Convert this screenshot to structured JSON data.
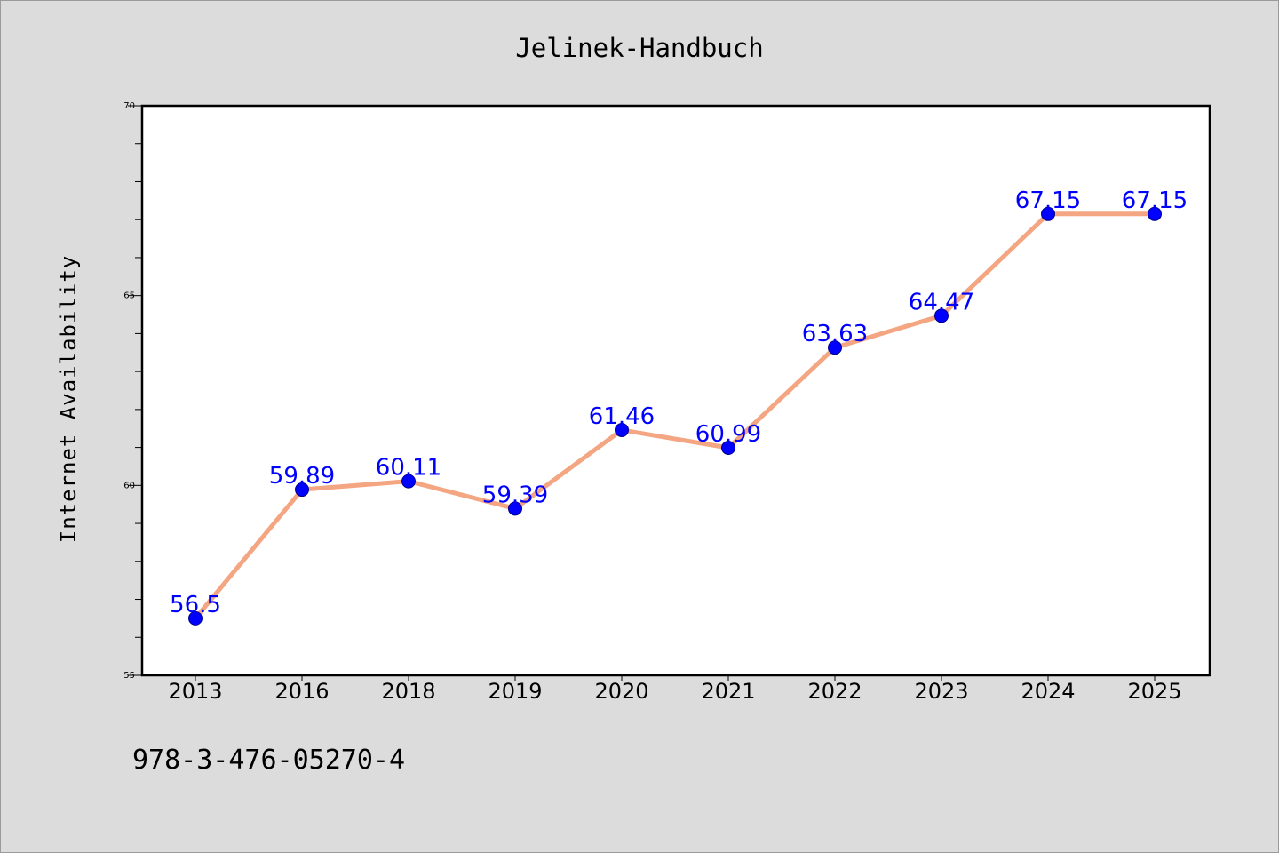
{
  "chart_data": {
    "type": "line",
    "title": "Jelinek-Handbuch",
    "xlabel": "",
    "ylabel": "Internet Availability",
    "categories": [
      "2013",
      "2016",
      "2018",
      "2019",
      "2020",
      "2021",
      "2022",
      "2023",
      "2024",
      "2025"
    ],
    "series": [
      {
        "values": [
          56.5,
          59.89,
          60.11,
          59.39,
          61.46,
          60.99,
          63.63,
          64.47,
          67.15,
          67.15
        ],
        "labels": [
          "56.5",
          "59.89",
          "60.11",
          "59.39",
          "61.46",
          "60.99",
          "63.63",
          "64.47",
          "67.15",
          "67.15"
        ],
        "line_color": "#f4a582",
        "marker_color": "#0000ff"
      }
    ],
    "ylim": [
      55,
      70
    ],
    "yticks": [
      "55",
      "60",
      "65",
      "70"
    ],
    "grid": false,
    "legend": "none"
  },
  "footer": {
    "isbn": "978-3-476-05270-4"
  },
  "colors": {
    "background": "#dcdcdc",
    "plot_background": "#ffffff",
    "label_color": "#0000ff"
  }
}
